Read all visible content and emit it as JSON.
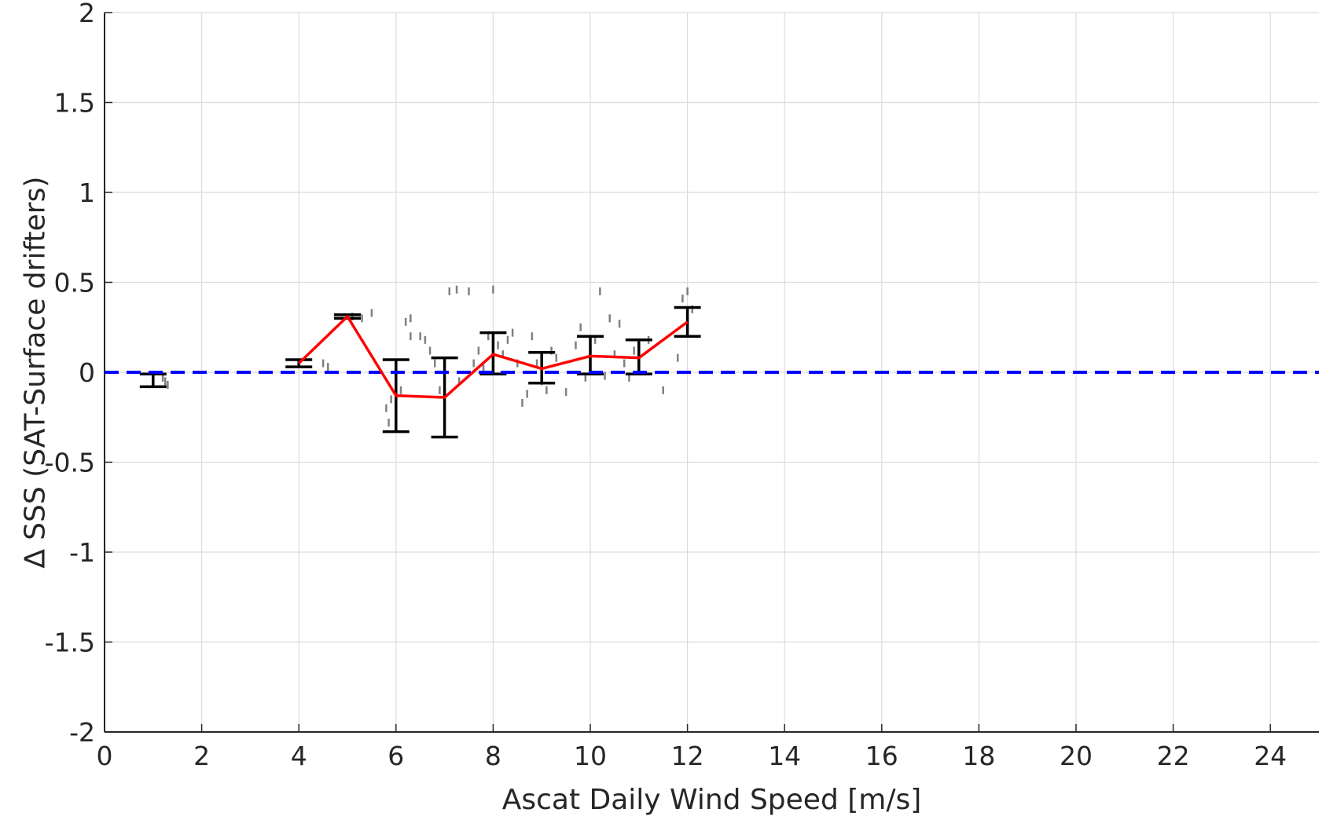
{
  "chart_data": {
    "type": "scatter",
    "title": "",
    "xlabel": "Ascat Daily Wind Speed [m/s]",
    "ylabel": "∆ SSS (SAT-Surface drifters)",
    "xlim": [
      0,
      25
    ],
    "ylim": [
      -2,
      2
    ],
    "x_ticks": [
      0,
      2,
      4,
      6,
      8,
      10,
      12,
      14,
      16,
      18,
      20,
      22,
      24
    ],
    "x_tick_labels": [
      "0",
      "2",
      "4",
      "6",
      "8",
      "10",
      "12",
      "14",
      "16",
      "18",
      "20",
      "22",
      "24"
    ],
    "y_ticks": [
      2,
      1.5,
      1,
      0.5,
      0,
      -0.5,
      -1,
      -1.5,
      -2
    ],
    "y_tick_labels": [
      "2",
      "1.5",
      "1",
      "0.5",
      "0",
      "-0.5",
      "-1",
      "-1.5",
      "-2"
    ],
    "grid": true,
    "reference_line": {
      "y": 0,
      "style": "dashed",
      "color": "#0000ff"
    },
    "mean_line": {
      "color": "#ff0000",
      "x": [
        4,
        5,
        6,
        7,
        8,
        9,
        10,
        11,
        12
      ],
      "y": [
        0.05,
        0.31,
        -0.13,
        -0.14,
        0.1,
        0.02,
        0.09,
        0.08,
        0.28
      ]
    },
    "error_bars": {
      "color": "#000000",
      "x": [
        1,
        4,
        5,
        6,
        7,
        8,
        9,
        10,
        11,
        12
      ],
      "lower": [
        -0.08,
        0.03,
        0.3,
        -0.33,
        -0.36,
        -0.01,
        -0.06,
        -0.01,
        -0.01,
        0.2
      ],
      "upper": [
        -0.01,
        0.07,
        0.32,
        0.07,
        0.08,
        0.22,
        0.11,
        0.2,
        0.18,
        0.36
      ]
    },
    "scatter_points": {
      "color": "#808080",
      "x": [
        1.2,
        1.25,
        1.3,
        4.5,
        4.6,
        5.1,
        5.3,
        5.5,
        5.8,
        5.85,
        5.9,
        6.0,
        6.1,
        6.2,
        6.3,
        6.3,
        6.5,
        6.6,
        6.7,
        6.8,
        6.9,
        7.0,
        7.1,
        7.25,
        7.3,
        7.5,
        7.6,
        7.7,
        7.8,
        7.9,
        8.0,
        8.1,
        8.2,
        8.3,
        8.4,
        8.5,
        8.6,
        8.7,
        8.8,
        8.9,
        9.0,
        9.1,
        9.2,
        9.3,
        9.5,
        9.7,
        9.8,
        9.9,
        10.1,
        10.2,
        10.3,
        10.4,
        10.5,
        10.6,
        10.7,
        10.8,
        10.9,
        11.0,
        11.2,
        11.5,
        11.8,
        11.9,
        12.0,
        12.1
      ],
      "y": [
        -0.03,
        -0.05,
        -0.07,
        0.05,
        0.03,
        0.31,
        0.3,
        0.33,
        -0.2,
        -0.28,
        -0.15,
        -0.3,
        -0.1,
        0.28,
        0.2,
        0.3,
        0.2,
        0.18,
        0.12,
        0.05,
        -0.1,
        -0.2,
        0.45,
        0.46,
        -0.05,
        0.45,
        0.05,
        0.12,
        0.02,
        0.2,
        0.46,
        0.15,
        0.1,
        0.18,
        0.22,
        0.05,
        -0.17,
        -0.12,
        0.2,
        0.05,
        -0.05,
        -0.1,
        0.12,
        0.08,
        -0.11,
        0.15,
        0.25,
        -0.03,
        0.18,
        0.45,
        -0.02,
        0.3,
        0.1,
        0.27,
        0.05,
        -0.03,
        0.12,
        0.02,
        0.18,
        -0.1,
        0.08,
        0.41,
        0.45,
        0.35
      ]
    }
  }
}
